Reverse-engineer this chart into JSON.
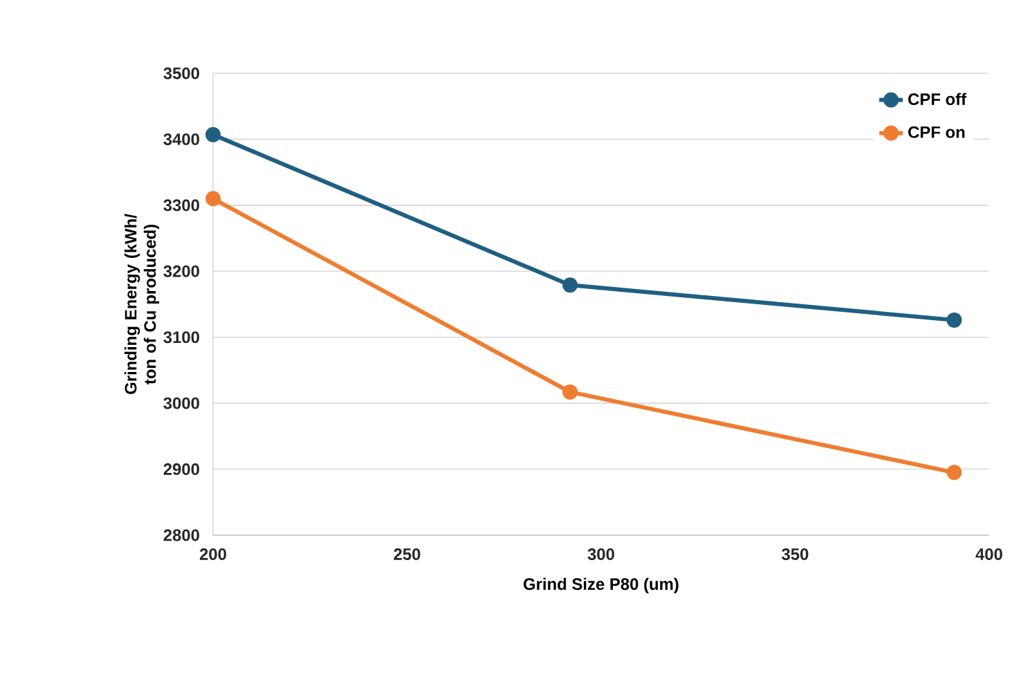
{
  "chart_data": {
    "type": "line",
    "xlabel": "Grind Size P80 (um)",
    "ylabel": "Grinding Energy (kWh/ ton of Cu produced)",
    "xlim": [
      200,
      400
    ],
    "xticks": [
      200,
      250,
      300,
      350,
      400
    ],
    "ylim": [
      2800,
      3500
    ],
    "yticks": [
      2800,
      2900,
      3000,
      3100,
      3200,
      3300,
      3400,
      3500
    ],
    "grid": "y",
    "legend": "top right",
    "marker": "circle",
    "line_style": "solid",
    "series": [
      {
        "name": "CPF off",
        "color": "#1f5f82",
        "x": [
          200,
          292,
          391
        ],
        "values": [
          3407,
          3179,
          3126
        ]
      },
      {
        "name": "CPF on",
        "color": "#ee7d31",
        "x": [
          200,
          292,
          391
        ],
        "values": [
          3310,
          3017,
          2895
        ]
      }
    ]
  }
}
